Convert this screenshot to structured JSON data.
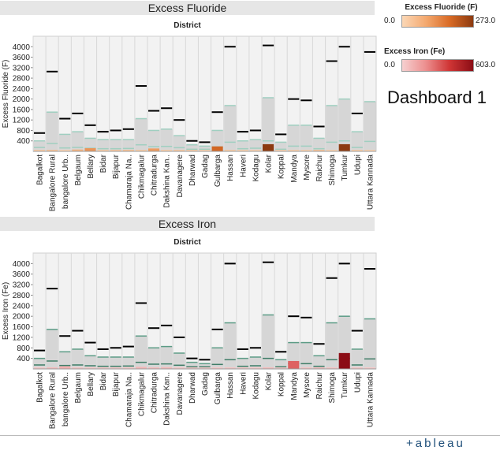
{
  "dashboard_title": "Dashboard 1",
  "brand": "+ableau",
  "legends": [
    {
      "title": "Excess Fluoride (F)",
      "min_label": "0.0",
      "max_label": "273.0",
      "colors": [
        "#fbd7b6",
        "#f4a96f",
        "#d96b26",
        "#8c3a10"
      ]
    },
    {
      "title": "Excess Iron (Fe)",
      "min_label": "0.0",
      "max_label": "603.0",
      "colors": [
        "#f6d0d0",
        "#ec8e8e",
        "#cf3535",
        "#8b0d15"
      ]
    }
  ],
  "panels": [
    {
      "title": "Excess Fluoride",
      "axis_title": "District"
    },
    {
      "title": "Excess Iron",
      "axis_title": "District"
    }
  ],
  "chart_data": [
    {
      "type": "bar",
      "title": "Excess Fluoride",
      "xlabel": "District",
      "ylabel": "Excess Fluoride (F)",
      "ylim": [
        0,
        4400
      ],
      "yticks": [
        400,
        800,
        1200,
        1600,
        2000,
        2400,
        2800,
        3200,
        3600,
        4000
      ],
      "categories": [
        "Bagalkot",
        "Bangalore Rural",
        "bangalore Urb..",
        "Belgaum",
        "Bellary",
        "Bidar",
        "Bijapur",
        "Chamaraja Na..",
        "Chikmagalur",
        "Chitradurga",
        "Dakshina Kan..",
        "Davanagere",
        "Dharwad",
        "Gadag",
        "Gulbarga",
        "Hassan",
        "Haveri",
        "Kodagu",
        "Kolar",
        "Koppal",
        "Mandya",
        "Mysore",
        "Raichur",
        "Shimoga",
        "Tumkur",
        "Udupi",
        "Uttara Kannada"
      ],
      "bar_value": [
        25,
        40,
        5,
        70,
        120,
        20,
        30,
        40,
        20,
        110,
        15,
        25,
        20,
        10,
        190,
        20,
        10,
        10,
        273,
        10,
        15,
        10,
        40,
        10,
        273,
        20,
        10
      ],
      "series": [
        {
          "name": "reference max",
          "values": [
            700,
            3050,
            1250,
            1450,
            1000,
            750,
            800,
            850,
            2500,
            1550,
            1650,
            1200,
            400,
            350,
            1500,
            4000,
            750,
            800,
            4050,
            650,
            2000,
            1950,
            950,
            3450,
            4000,
            1450,
            3800
          ]
        },
        {
          "name": "reference band",
          "values": [
            400,
            1500,
            650,
            750,
            500,
            450,
            450,
            450,
            1250,
            800,
            850,
            600,
            250,
            200,
            800,
            1750,
            400,
            450,
            2050,
            350,
            1000,
            1000,
            500,
            1750,
            2000,
            750,
            1900
          ]
        },
        {
          "name": "reference low",
          "values": [
            150,
            300,
            130,
            150,
            120,
            100,
            100,
            110,
            250,
            180,
            190,
            140,
            80,
            80,
            170,
            350,
            100,
            120,
            400,
            80,
            200,
            200,
            100,
            350,
            400,
            150,
            380
          ]
        }
      ]
    },
    {
      "type": "bar",
      "title": "Excess Iron",
      "xlabel": "District",
      "ylabel": "Excess Iron (Fe)",
      "ylim": [
        0,
        4400
      ],
      "yticks": [
        400,
        800,
        1200,
        1600,
        2000,
        2400,
        2800,
        3200,
        3600,
        4000
      ],
      "categories": [
        "Bagalkot",
        "Bangalore Rural",
        "bangalore Urb..",
        "Belgaum",
        "Bellary",
        "Bidar",
        "Bijapur",
        "Chamaraja Na..",
        "Chikmagalur",
        "Chitradurga",
        "Dakshina Kan..",
        "Davanagere",
        "Dharwad",
        "Gadag",
        "Gulbarga",
        "Hassan",
        "Haveri",
        "Kodagu",
        "Kolar",
        "Koppal",
        "Mandya",
        "Mysore",
        "Raichur",
        "Shimoga",
        "Tumkur",
        "Udupi",
        "Uttara Kannada"
      ],
      "bar_value": [
        30,
        60,
        100,
        40,
        30,
        20,
        20,
        30,
        80,
        60,
        70,
        30,
        20,
        10,
        30,
        40,
        20,
        20,
        60,
        20,
        300,
        40,
        60,
        40,
        603,
        40,
        20
      ],
      "series": [
        {
          "name": "reference max",
          "values": [
            700,
            3050,
            1250,
            1450,
            1000,
            750,
            800,
            850,
            2500,
            1550,
            1650,
            1200,
            400,
            350,
            1500,
            4000,
            750,
            800,
            4050,
            650,
            2000,
            1950,
            950,
            3450,
            4000,
            1450,
            3800
          ]
        },
        {
          "name": "reference band",
          "values": [
            400,
            1500,
            650,
            750,
            500,
            450,
            450,
            450,
            1250,
            800,
            850,
            600,
            250,
            200,
            800,
            1750,
            400,
            450,
            2050,
            350,
            1000,
            1000,
            500,
            1750,
            2000,
            750,
            1900
          ]
        },
        {
          "name": "reference low",
          "values": [
            150,
            300,
            130,
            150,
            120,
            100,
            100,
            110,
            250,
            180,
            190,
            140,
            80,
            80,
            170,
            350,
            100,
            120,
            400,
            80,
            200,
            200,
            100,
            350,
            400,
            150,
            380
          ]
        }
      ]
    }
  ]
}
